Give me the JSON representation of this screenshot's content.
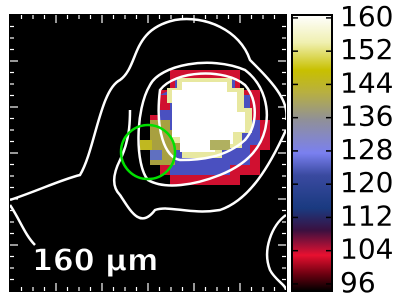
{
  "chart_data": {
    "type": "image",
    "scale_label": "160 μm",
    "colorbar": {
      "clim": [
        94.3,
        160.7
      ],
      "ticks": [
        96,
        104,
        112,
        120,
        128,
        136,
        144,
        152,
        160
      ]
    }
  }
}
